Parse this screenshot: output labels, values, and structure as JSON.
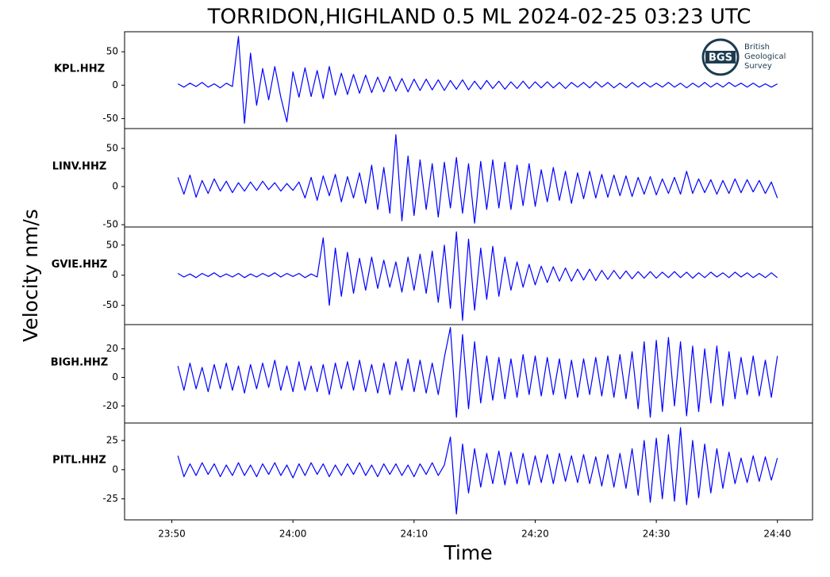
{
  "title": "TORRIDON,HIGHLAND 0.5 ML   2024-02-25 03:23 UTC",
  "x_label": "Time",
  "y_label": "Velocity nm/s",
  "logo": {
    "abbr": "BGS",
    "lines": [
      "British",
      "Geological",
      "Survey"
    ]
  },
  "xlim": [
    -3.9,
    52.9
  ],
  "xticks": [
    {
      "value": 0,
      "label": "23:50"
    },
    {
      "value": 10,
      "label": "24:00"
    },
    {
      "value": 20,
      "label": "24:10"
    },
    {
      "value": 30,
      "label": "24:20"
    },
    {
      "value": 40,
      "label": "24:30"
    },
    {
      "value": 50,
      "label": "24:40"
    }
  ],
  "x": [
    0.5,
    1,
    1.5,
    2,
    2.5,
    3,
    3.5,
    4,
    4.5,
    5,
    5.5,
    6,
    6.5,
    7,
    7.5,
    8,
    8.5,
    9,
    9.5,
    10,
    10.5,
    11,
    11.5,
    12,
    12.5,
    13,
    13.5,
    14,
    14.5,
    15,
    15.5,
    16,
    16.5,
    17,
    17.5,
    18,
    18.5,
    19,
    19.5,
    20,
    20.5,
    21,
    21.5,
    22,
    22.5,
    23,
    23.5,
    24,
    24.5,
    25,
    25.5,
    26,
    26.5,
    27,
    27.5,
    28,
    28.5,
    29,
    29.5,
    30,
    30.5,
    31,
    31.5,
    32,
    32.5,
    33,
    33.5,
    34,
    34.5,
    35,
    35.5,
    36,
    36.5,
    37,
    37.5,
    38,
    38.5,
    39,
    39.5,
    40,
    40.5,
    41,
    41.5,
    42,
    42.5,
    43,
    43.5,
    44,
    44.5,
    45,
    45.5,
    46,
    46.5,
    47,
    47.5,
    48,
    48.5,
    49,
    49.5,
    50
  ],
  "chart_data": [
    {
      "type": "line",
      "label": "KPL.HHZ",
      "ylim": [
        -65,
        80
      ],
      "yticks": [
        -50,
        0,
        50
      ],
      "series": [
        {
          "color": "#0000ff",
          "values": [
            2,
            -3,
            3,
            -2,
            4,
            -3,
            2,
            -4,
            3,
            -2,
            73,
            -57,
            48,
            -30,
            25,
            -22,
            28,
            -18,
            -55,
            20,
            -18,
            26,
            -17,
            22,
            -20,
            28,
            -15,
            18,
            -14,
            16,
            -12,
            15,
            -11,
            12,
            -10,
            13,
            -9,
            10,
            -10,
            9,
            -8,
            9,
            -7,
            8,
            -8,
            7,
            -6,
            8,
            -7,
            6,
            -6,
            7,
            -5,
            6,
            -6,
            5,
            -5,
            6,
            -5,
            5,
            -4,
            5,
            -4,
            4,
            -5,
            4,
            -3,
            4,
            -4,
            5,
            -3,
            4,
            -4,
            3,
            -4,
            4,
            -3,
            4,
            -3,
            3,
            -3,
            4,
            -3,
            3,
            -4,
            3,
            -3,
            4,
            -3,
            3,
            -3,
            4,
            -2,
            3,
            -3,
            3,
            -3,
            2,
            -3,
            2
          ]
        }
      ]
    },
    {
      "type": "line",
      "label": "LINV.HHZ",
      "ylim": [
        -53,
        76
      ],
      "yticks": [
        -50,
        0,
        50
      ],
      "series": [
        {
          "color": "#0000ff",
          "values": [
            12,
            -10,
            15,
            -14,
            8,
            -9,
            10,
            -6,
            7,
            -8,
            5,
            -6,
            6,
            -5,
            7,
            -4,
            5,
            -6,
            4,
            -5,
            6,
            -15,
            12,
            -18,
            14,
            -12,
            16,
            -20,
            13,
            -15,
            18,
            -22,
            28,
            -30,
            25,
            -35,
            68,
            -45,
            40,
            -38,
            35,
            -30,
            30,
            -40,
            32,
            -28,
            38,
            -35,
            30,
            -48,
            33,
            -30,
            35,
            -28,
            32,
            -30,
            28,
            -25,
            30,
            -26,
            22,
            -20,
            25,
            -18,
            20,
            -22,
            18,
            -16,
            20,
            -15,
            16,
            -14,
            15,
            -12,
            14,
            -13,
            12,
            -10,
            13,
            -11,
            10,
            -9,
            12,
            -10,
            20,
            -9,
            10,
            -8,
            9,
            -10,
            8,
            -9,
            10,
            -8,
            9,
            -7,
            8,
            -9,
            6,
            -15
          ]
        }
      ]
    },
    {
      "type": "line",
      "label": "GVIE.HHZ",
      "ylim": [
        -82,
        80
      ],
      "yticks": [
        -50,
        0,
        50
      ],
      "series": [
        {
          "color": "#0000ff",
          "values": [
            3,
            -3,
            2,
            -4,
            3,
            -2,
            4,
            -3,
            2,
            -3,
            3,
            -4,
            2,
            -3,
            3,
            -2,
            4,
            -3,
            3,
            -2,
            3,
            -4,
            2,
            -3,
            62,
            -50,
            45,
            -35,
            38,
            -30,
            28,
            -25,
            30,
            -22,
            25,
            -20,
            22,
            -28,
            30,
            -25,
            35,
            -30,
            40,
            -45,
            50,
            -55,
            72,
            -75,
            60,
            -58,
            45,
            -40,
            48,
            -35,
            30,
            -25,
            22,
            -20,
            18,
            -16,
            15,
            -12,
            14,
            -10,
            12,
            -10,
            10,
            -8,
            10,
            -9,
            8,
            -7,
            8,
            -6,
            7,
            -6,
            6,
            -5,
            6,
            -5,
            5,
            -4,
            6,
            -4,
            5,
            -5,
            4,
            -4,
            5,
            -3,
            4,
            -4,
            5,
            -3,
            4,
            -4,
            3,
            -4,
            4,
            -4
          ]
        }
      ]
    },
    {
      "type": "line",
      "label": "BIGH.HHZ",
      "ylim": [
        -32,
        37
      ],
      "yticks": [
        -20,
        0,
        20
      ],
      "series": [
        {
          "color": "#0000ff",
          "values": [
            8,
            -9,
            10,
            -8,
            7,
            -10,
            9,
            -8,
            10,
            -9,
            8,
            -11,
            9,
            -8,
            10,
            -7,
            12,
            -9,
            8,
            -10,
            11,
            -9,
            8,
            -10,
            9,
            -12,
            10,
            -8,
            11,
            -9,
            12,
            -10,
            9,
            -11,
            10,
            -12,
            11,
            -9,
            13,
            -10,
            12,
            -11,
            10,
            -12,
            14,
            35,
            -28,
            30,
            -22,
            25,
            -18,
            15,
            -16,
            14,
            -15,
            13,
            -14,
            16,
            -12,
            15,
            -13,
            14,
            -12,
            13,
            -15,
            12,
            -14,
            13,
            -12,
            14,
            -13,
            15,
            -14,
            16,
            -15,
            18,
            -22,
            25,
            -28,
            26,
            -24,
            28,
            -20,
            25,
            -27,
            22,
            -24,
            20,
            -18,
            22,
            -20,
            18,
            -15,
            14,
            -12,
            15,
            -13,
            12,
            -14,
            15
          ]
        }
      ]
    },
    {
      "type": "line",
      "label": "PITL.HHZ",
      "ylim": [
        -43,
        40
      ],
      "yticks": [
        -25,
        0,
        25
      ],
      "series": [
        {
          "color": "#0000ff",
          "values": [
            12,
            -6,
            5,
            -5,
            6,
            -4,
            5,
            -6,
            4,
            -5,
            6,
            -5,
            4,
            -6,
            5,
            -4,
            6,
            -5,
            4,
            -7,
            5,
            -5,
            6,
            -4,
            5,
            -6,
            4,
            -5,
            5,
            -4,
            6,
            -5,
            4,
            -6,
            5,
            -4,
            5,
            -5,
            4,
            -6,
            5,
            -4,
            6,
            -5,
            4,
            28,
            -38,
            22,
            -20,
            18,
            -15,
            14,
            -12,
            16,
            -13,
            15,
            -12,
            14,
            -13,
            12,
            -11,
            13,
            -12,
            14,
            -10,
            12,
            -11,
            13,
            -12,
            11,
            -14,
            13,
            -15,
            14,
            -16,
            18,
            -22,
            25,
            -28,
            27,
            -25,
            30,
            -27,
            36,
            -30,
            25,
            -24,
            22,
            -20,
            18,
            -16,
            15,
            -12,
            10,
            -11,
            12,
            -10,
            11,
            -9,
            10
          ]
        }
      ]
    }
  ]
}
